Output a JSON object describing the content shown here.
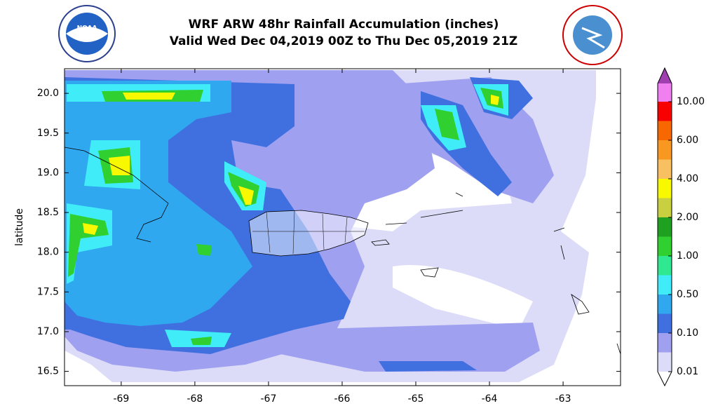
{
  "header": {
    "title": "WRF ARW 48hr Rainfall Accumulation (inches)",
    "subtitle": "Valid Wed Dec 04,2019 00Z to Thu Dec 05,2019 21Z",
    "left_logo": "NOAA"
  },
  "map": {
    "ylabel": "latitude",
    "xlim": [
      -69.77,
      -62.22
    ],
    "ylim": [
      16.32,
      20.31
    ],
    "xticks": [
      -69,
      -68,
      -67,
      -66,
      -65,
      -64,
      -63
    ],
    "yticks": [
      {
        "value": 16.5,
        "label": "16.5"
      },
      {
        "value": 17.0,
        "label": "17.0"
      },
      {
        "value": 17.5,
        "label": "17.5"
      },
      {
        "value": 18.0,
        "label": "18.0"
      },
      {
        "value": 18.5,
        "label": "18.5"
      },
      {
        "value": 19.0,
        "label": "19.0"
      },
      {
        "value": 19.5,
        "label": "19.5"
      },
      {
        "value": 20.0,
        "label": "20.0"
      }
    ]
  },
  "colorbar": {
    "levels": [
      {
        "value": 0.01,
        "label": "0.01"
      },
      {
        "value": 0.1,
        "label": "0.10"
      },
      {
        "value": 0.5,
        "label": "0.50"
      },
      {
        "value": 1,
        "label": "1.00"
      },
      {
        "value": 2,
        "label": "2.00"
      },
      {
        "value": 4,
        "label": "4.00"
      },
      {
        "value": 6,
        "label": "6.00"
      },
      {
        "value": 10,
        "label": "10.00"
      }
    ],
    "colors": [
      "#dcdcf8",
      "#a0a0f0",
      "#4070e0",
      "#30a8f0",
      "#40ecf8",
      "#30e890",
      "#30d030",
      "#20a020",
      "#c8d040",
      "#f8f800",
      "#f8c060",
      "#f89820",
      "#f86800",
      "#f80000"
    ],
    "over_colors": [
      "#f080f0",
      "#a040b0"
    ]
  }
}
